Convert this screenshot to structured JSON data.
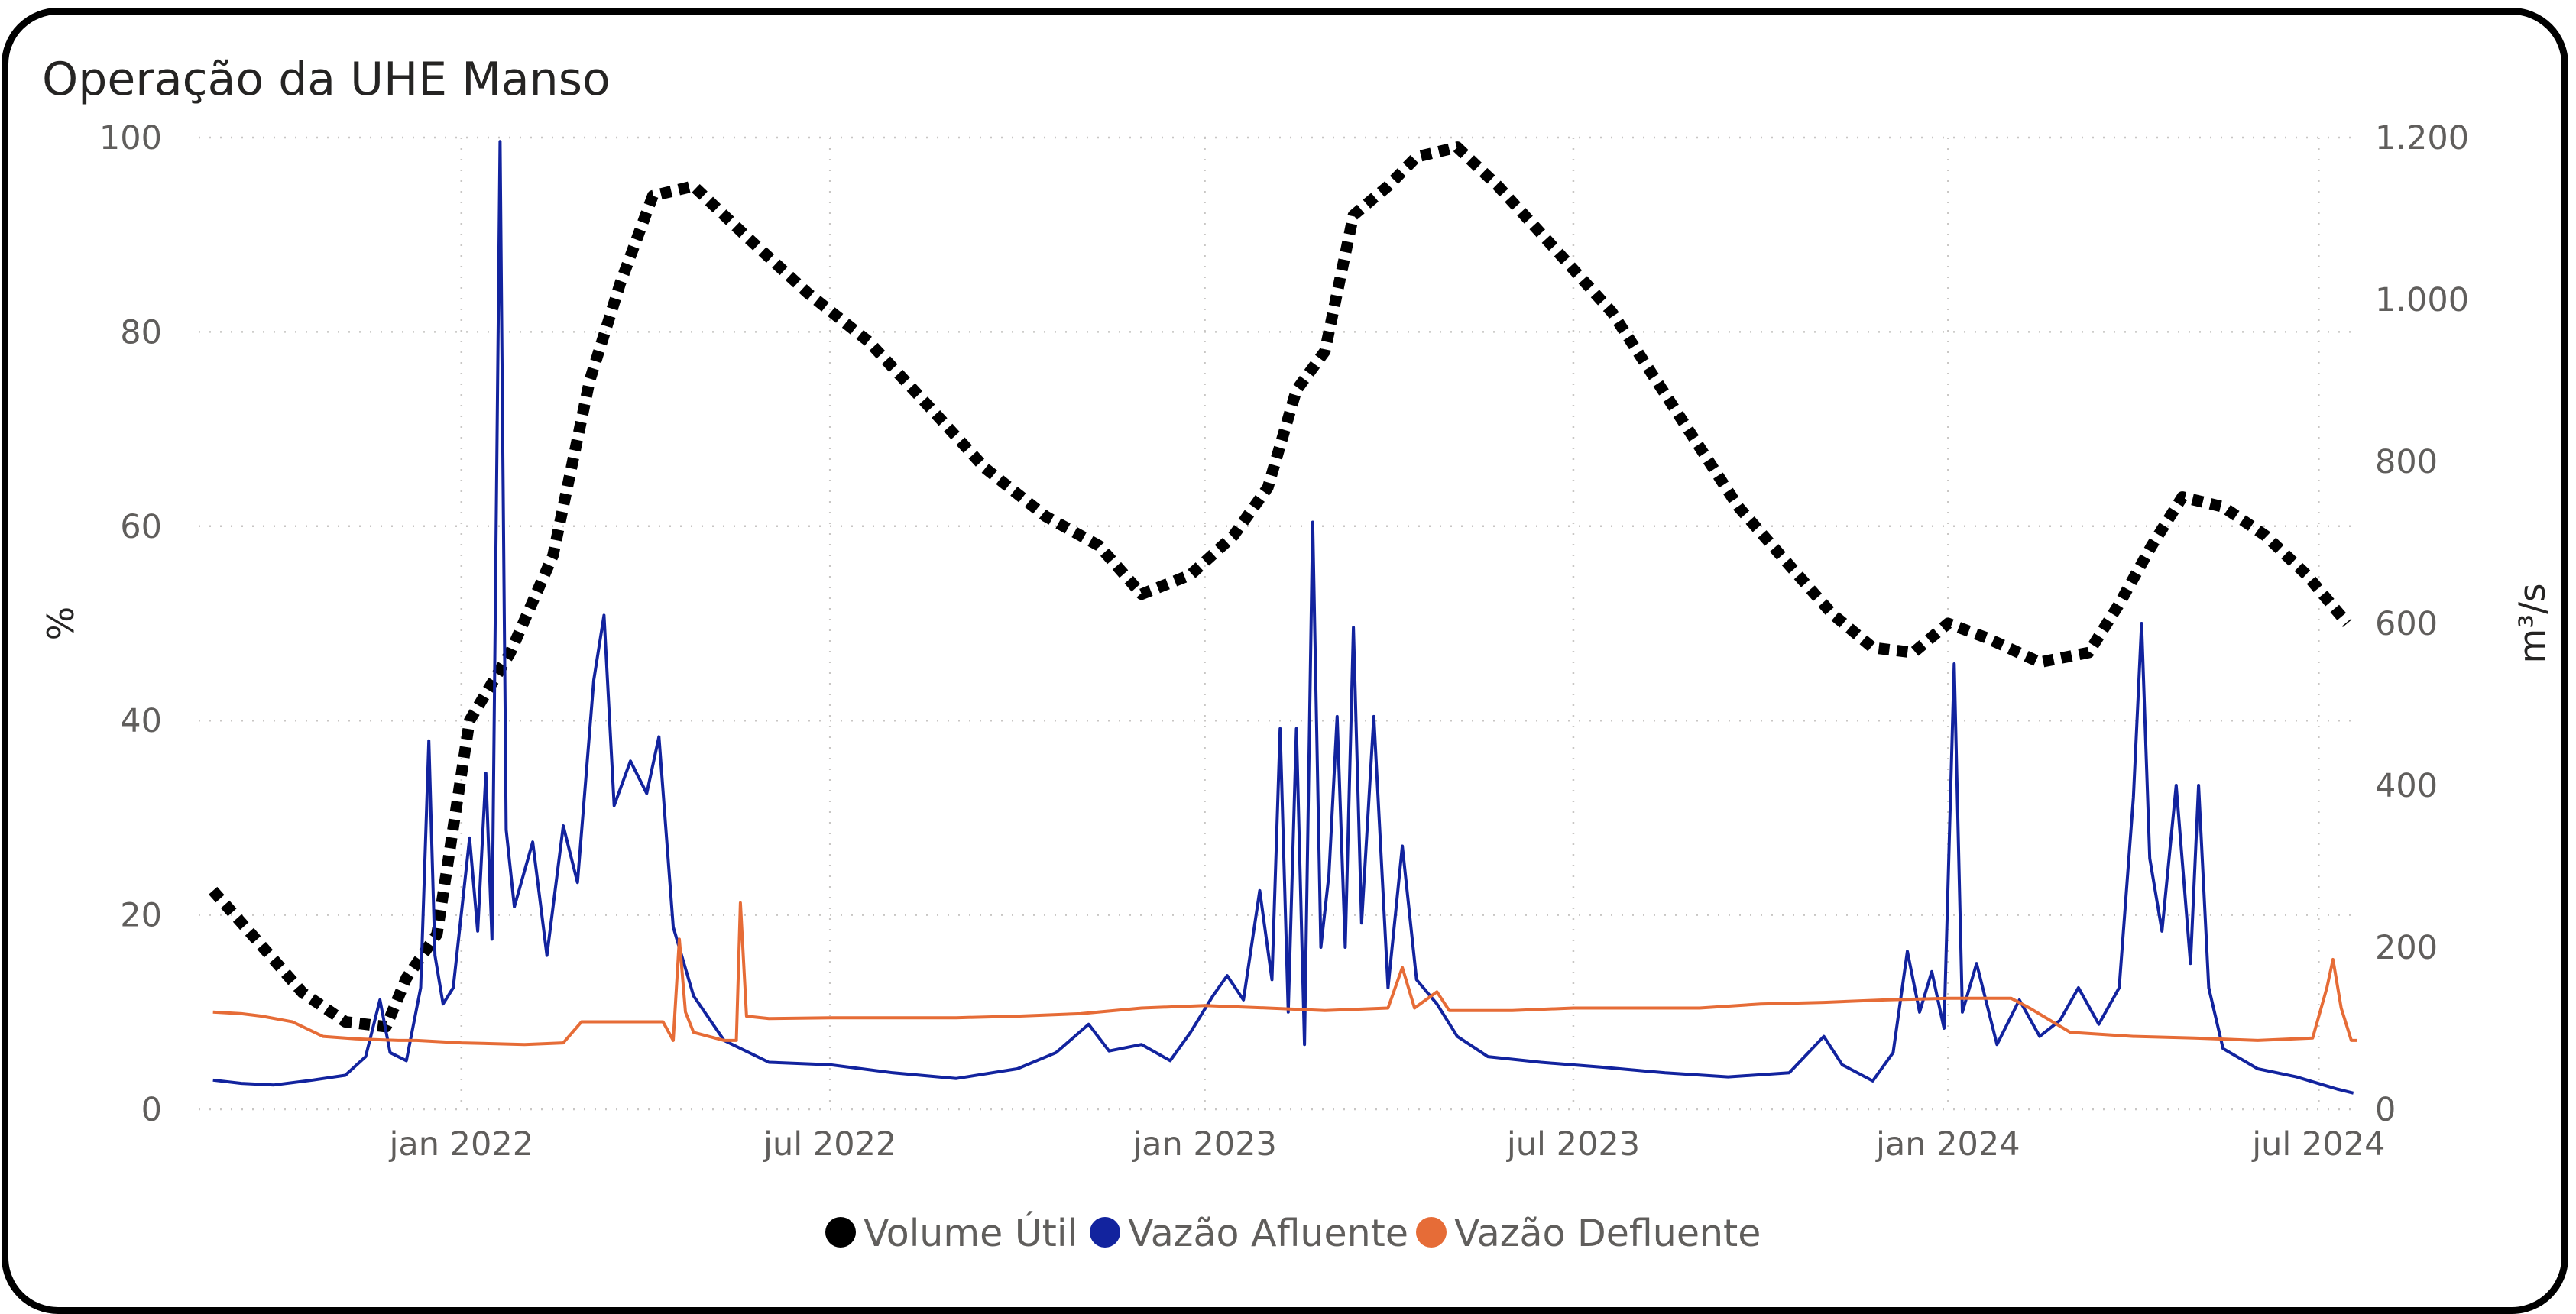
{
  "title": "Operação da UHE Manso",
  "chart_data": {
    "type": "line",
    "x_type": "date",
    "x_range": [
      "2021-08-25",
      "2024-07-20"
    ],
    "x_ticks": [
      {
        "date": "2022-01-01",
        "label": "jan 2022"
      },
      {
        "date": "2022-07-01",
        "label": "jul 2022"
      },
      {
        "date": "2023-01-01",
        "label": "jan 2023"
      },
      {
        "date": "2023-07-01",
        "label": "jul 2023"
      },
      {
        "date": "2024-01-01",
        "label": "jan 2024"
      },
      {
        "date": "2024-07-01",
        "label": "jul 2024"
      }
    ],
    "y_left": {
      "label": "%",
      "range": [
        0,
        100
      ],
      "ticks": [
        0,
        20,
        40,
        60,
        80,
        100
      ],
      "tick_labels": [
        "0",
        "20",
        "40",
        "60",
        "80",
        "100"
      ]
    },
    "y_right": {
      "label": "m³/s",
      "range": [
        0,
        1200
      ],
      "ticks": [
        0,
        200,
        400,
        600,
        800,
        1000,
        1200
      ],
      "tick_labels": [
        "0",
        "200",
        "400",
        "600",
        "800",
        "1.000",
        "1.200"
      ]
    },
    "grid": "dotted",
    "legend_position": "bottom-center",
    "series": [
      {
        "name": "Volume Útil",
        "axis": "left",
        "color": "#000000",
        "style": "dotted",
        "points": [
          [
            "2021-09-01",
            22.5
          ],
          [
            "2021-09-20",
            18
          ],
          [
            "2021-10-15",
            12
          ],
          [
            "2021-11-05",
            9
          ],
          [
            "2021-11-25",
            8.5
          ],
          [
            "2021-12-05",
            13.5
          ],
          [
            "2021-12-20",
            18
          ],
          [
            "2022-01-05",
            40
          ],
          [
            "2022-01-25",
            47
          ],
          [
            "2022-02-15",
            57
          ],
          [
            "2022-03-05",
            75
          ],
          [
            "2022-03-20",
            85
          ],
          [
            "2022-04-05",
            94
          ],
          [
            "2022-04-25",
            95
          ],
          [
            "2022-05-20",
            90
          ],
          [
            "2022-06-20",
            84
          ],
          [
            "2022-07-20",
            79
          ],
          [
            "2022-08-20",
            72
          ],
          [
            "2022-09-15",
            66
          ],
          [
            "2022-10-15",
            61
          ],
          [
            "2022-11-10",
            58
          ],
          [
            "2022-12-01",
            53
          ],
          [
            "2022-12-25",
            55
          ],
          [
            "2023-01-15",
            59
          ],
          [
            "2023-02-01",
            64
          ],
          [
            "2023-02-15",
            74
          ],
          [
            "2023-03-01",
            78
          ],
          [
            "2023-03-15",
            92
          ],
          [
            "2023-04-01",
            95
          ],
          [
            "2023-04-15",
            98
          ],
          [
            "2023-05-05",
            99
          ],
          [
            "2023-05-25",
            95
          ],
          [
            "2023-06-20",
            89
          ],
          [
            "2023-07-20",
            82
          ],
          [
            "2023-08-20",
            72
          ],
          [
            "2023-09-20",
            62
          ],
          [
            "2023-10-15",
            56
          ],
          [
            "2023-11-05",
            51
          ],
          [
            "2023-11-25",
            47.5
          ],
          [
            "2023-12-15",
            47
          ],
          [
            "2024-01-01",
            50
          ],
          [
            "2024-01-20",
            48.5
          ],
          [
            "2024-02-15",
            46
          ],
          [
            "2024-03-10",
            47
          ],
          [
            "2024-03-25",
            52
          ],
          [
            "2024-04-10",
            58
          ],
          [
            "2024-04-25",
            63
          ],
          [
            "2024-05-15",
            62
          ],
          [
            "2024-06-05",
            59
          ],
          [
            "2024-06-25",
            55
          ],
          [
            "2024-07-15",
            50
          ]
        ]
      },
      {
        "name": "Vazão Afluente",
        "axis": "right",
        "color": "#12239e",
        "style": "solid",
        "points": [
          [
            "2021-09-01",
            36
          ],
          [
            "2021-09-15",
            32
          ],
          [
            "2021-10-01",
            30
          ],
          [
            "2021-10-20",
            36
          ],
          [
            "2021-11-05",
            42
          ],
          [
            "2021-11-15",
            65
          ],
          [
            "2021-11-22",
            135
          ],
          [
            "2021-11-27",
            70
          ],
          [
            "2021-12-05",
            60
          ],
          [
            "2021-12-12",
            150
          ],
          [
            "2021-12-16",
            455
          ],
          [
            "2021-12-19",
            190
          ],
          [
            "2021-12-23",
            130
          ],
          [
            "2021-12-28",
            150
          ],
          [
            "2022-01-05",
            335
          ],
          [
            "2022-01-09",
            220
          ],
          [
            "2022-01-13",
            415
          ],
          [
            "2022-01-16",
            210
          ],
          [
            "2022-01-20",
            1195
          ],
          [
            "2022-01-23",
            345
          ],
          [
            "2022-01-27",
            250
          ],
          [
            "2022-02-05",
            330
          ],
          [
            "2022-02-12",
            190
          ],
          [
            "2022-02-20",
            350
          ],
          [
            "2022-02-27",
            280
          ],
          [
            "2022-03-07",
            530
          ],
          [
            "2022-03-12",
            610
          ],
          [
            "2022-03-17",
            375
          ],
          [
            "2022-03-25",
            430
          ],
          [
            "2022-04-02",
            390
          ],
          [
            "2022-04-08",
            460
          ],
          [
            "2022-04-15",
            225
          ],
          [
            "2022-04-25",
            140
          ],
          [
            "2022-05-10",
            85
          ],
          [
            "2022-06-01",
            58
          ],
          [
            "2022-07-01",
            55
          ],
          [
            "2022-08-01",
            45
          ],
          [
            "2022-09-01",
            38
          ],
          [
            "2022-10-01",
            50
          ],
          [
            "2022-10-20",
            70
          ],
          [
            "2022-11-05",
            105
          ],
          [
            "2022-11-15",
            72
          ],
          [
            "2022-12-01",
            80
          ],
          [
            "2022-12-15",
            60
          ],
          [
            "2022-12-25",
            95
          ],
          [
            "2023-01-05",
            140
          ],
          [
            "2023-01-12",
            165
          ],
          [
            "2023-01-20",
            135
          ],
          [
            "2023-01-28",
            270
          ],
          [
            "2023-02-03",
            160
          ],
          [
            "2023-02-07",
            470
          ],
          [
            "2023-02-11",
            120
          ],
          [
            "2023-02-15",
            470
          ],
          [
            "2023-02-19",
            80
          ],
          [
            "2023-02-23",
            725
          ],
          [
            "2023-02-27",
            200
          ],
          [
            "2023-03-03",
            290
          ],
          [
            "2023-03-07",
            485
          ],
          [
            "2023-03-11",
            200
          ],
          [
            "2023-03-15",
            595
          ],
          [
            "2023-03-19",
            230
          ],
          [
            "2023-03-25",
            485
          ],
          [
            "2023-04-01",
            150
          ],
          [
            "2023-04-08",
            325
          ],
          [
            "2023-04-15",
            160
          ],
          [
            "2023-04-25",
            130
          ],
          [
            "2023-05-05",
            90
          ],
          [
            "2023-05-20",
            65
          ],
          [
            "2023-06-15",
            58
          ],
          [
            "2023-07-15",
            52
          ],
          [
            "2023-08-15",
            45
          ],
          [
            "2023-09-15",
            40
          ],
          [
            "2023-10-15",
            45
          ],
          [
            "2023-11-01",
            90
          ],
          [
            "2023-11-10",
            55
          ],
          [
            "2023-11-25",
            35
          ],
          [
            "2023-12-05",
            70
          ],
          [
            "2023-12-12",
            195
          ],
          [
            "2023-12-18",
            120
          ],
          [
            "2023-12-24",
            170
          ],
          [
            "2023-12-30",
            100
          ],
          [
            "2024-01-04",
            550
          ],
          [
            "2024-01-08",
            120
          ],
          [
            "2024-01-15",
            180
          ],
          [
            "2024-01-25",
            80
          ],
          [
            "2024-02-05",
            135
          ],
          [
            "2024-02-15",
            90
          ],
          [
            "2024-02-25",
            110
          ],
          [
            "2024-03-05",
            150
          ],
          [
            "2024-03-15",
            105
          ],
          [
            "2024-03-25",
            150
          ],
          [
            "2024-04-01",
            385
          ],
          [
            "2024-04-05",
            600
          ],
          [
            "2024-04-09",
            310
          ],
          [
            "2024-04-15",
            220
          ],
          [
            "2024-04-22",
            400
          ],
          [
            "2024-04-29",
            180
          ],
          [
            "2024-05-03",
            400
          ],
          [
            "2024-05-08",
            150
          ],
          [
            "2024-05-15",
            75
          ],
          [
            "2024-06-01",
            50
          ],
          [
            "2024-06-20",
            40
          ],
          [
            "2024-07-10",
            25
          ],
          [
            "2024-07-18",
            20
          ]
        ]
      },
      {
        "name": "Vazão Defluente",
        "axis": "right",
        "color": "#e66c37",
        "style": "solid",
        "points": [
          [
            "2021-09-01",
            120
          ],
          [
            "2021-09-15",
            118
          ],
          [
            "2021-09-25",
            115
          ],
          [
            "2021-10-10",
            108
          ],
          [
            "2021-10-25",
            90
          ],
          [
            "2021-11-10",
            87
          ],
          [
            "2021-12-01",
            85
          ],
          [
            "2021-12-10",
            85
          ],
          [
            "2022-01-01",
            82
          ],
          [
            "2022-02-01",
            80
          ],
          [
            "2022-02-20",
            82
          ],
          [
            "2022-03-01",
            108
          ],
          [
            "2022-04-10",
            108
          ],
          [
            "2022-04-15",
            85
          ],
          [
            "2022-04-18",
            210
          ],
          [
            "2022-04-21",
            120
          ],
          [
            "2022-04-25",
            95
          ],
          [
            "2022-05-10",
            85
          ],
          [
            "2022-05-16",
            85
          ],
          [
            "2022-05-18",
            255
          ],
          [
            "2022-05-21",
            115
          ],
          [
            "2022-06-01",
            112
          ],
          [
            "2022-07-01",
            113
          ],
          [
            "2022-09-01",
            113
          ],
          [
            "2022-10-01",
            115
          ],
          [
            "2022-11-01",
            118
          ],
          [
            "2022-12-01",
            125
          ],
          [
            "2023-01-01",
            128
          ],
          [
            "2023-02-01",
            125
          ],
          [
            "2023-03-01",
            122
          ],
          [
            "2023-04-01",
            125
          ],
          [
            "2023-04-08",
            175
          ],
          [
            "2023-04-14",
            125
          ],
          [
            "2023-04-25",
            145
          ],
          [
            "2023-05-01",
            122
          ],
          [
            "2023-06-01",
            122
          ],
          [
            "2023-07-01",
            125
          ],
          [
            "2023-09-01",
            125
          ],
          [
            "2023-10-01",
            130
          ],
          [
            "2023-11-01",
            132
          ],
          [
            "2023-12-01",
            135
          ],
          [
            "2024-01-01",
            137
          ],
          [
            "2024-02-01",
            137
          ],
          [
            "2024-02-10",
            125
          ],
          [
            "2024-03-01",
            95
          ],
          [
            "2024-04-01",
            90
          ],
          [
            "2024-05-01",
            88
          ],
          [
            "2024-06-01",
            85
          ],
          [
            "2024-06-28",
            88
          ],
          [
            "2024-07-05",
            150
          ],
          [
            "2024-07-08",
            185
          ],
          [
            "2024-07-12",
            125
          ],
          [
            "2024-07-17",
            85
          ],
          [
            "2024-07-20",
            85
          ]
        ]
      }
    ]
  }
}
